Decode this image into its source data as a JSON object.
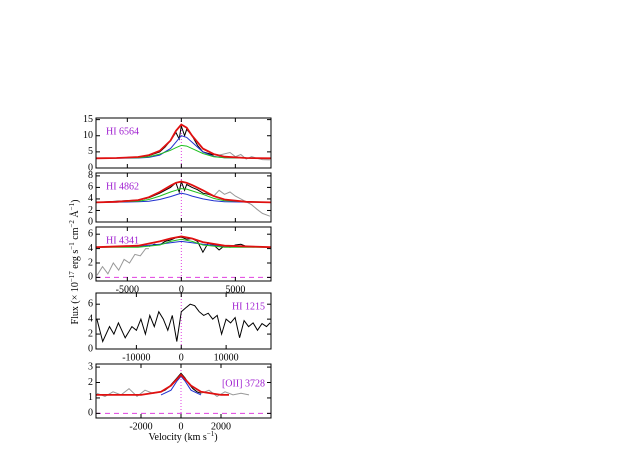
{
  "chart_data": [
    {
      "type": "line",
      "label": "HI 6564",
      "xlim": [
        -7900,
        8300
      ],
      "ylim": [
        0,
        15.5
      ],
      "xticks": [
        -5000,
        0,
        5000
      ],
      "yticks": [
        0,
        5,
        10,
        15
      ],
      "xtick_labels": false,
      "hline": {
        "value": 0,
        "color": "#e040e0"
      },
      "vline": {
        "value": 0,
        "color": "#e040e0"
      },
      "series": [
        {
          "color": "#999999",
          "x": [
            2500,
            3500,
            4500,
            5000,
            5500,
            6000,
            6500,
            7000,
            7500,
            8200
          ],
          "values": [
            4.5,
            4,
            4.8,
            3.5,
            4.2,
            2.8,
            3.5,
            3,
            2.6,
            2.5
          ]
        },
        {
          "color": "#000000",
          "x": [
            -7800,
            -6000,
            -4000,
            -3000,
            -2000,
            -1500,
            -1000,
            -500,
            -200,
            0,
            300,
            500,
            1000,
            1500,
            2000,
            2500,
            3000
          ],
          "values": [
            3,
            3.1,
            3.3,
            3.8,
            5,
            6.5,
            8.5,
            11,
            9,
            13,
            10,
            12,
            10,
            7,
            5,
            4.5,
            4
          ]
        },
        {
          "color": "#2030d0",
          "x": [
            -7900,
            -4000,
            -3000,
            -2000,
            -1000,
            -500,
            0,
            500,
            1000,
            2000,
            3000,
            4000,
            8300
          ],
          "values": [
            3,
            3.1,
            3.3,
            4,
            6,
            8,
            10,
            9.5,
            8,
            5,
            3.6,
            3.2,
            3
          ]
        },
        {
          "color": "#20c020",
          "x": [
            -7900,
            -4000,
            -3000,
            -2000,
            -1000,
            -500,
            0,
            500,
            1000,
            2000,
            3000,
            4000,
            8300
          ],
          "values": [
            3,
            3.2,
            3.5,
            4.3,
            5.5,
            6.3,
            7,
            6.8,
            6,
            4.5,
            3.5,
            3.2,
            3
          ]
        },
        {
          "color": "#e01010",
          "x": [
            -7900,
            -6000,
            -4000,
            -3000,
            -2000,
            -1000,
            -500,
            0,
            500,
            1000,
            2000,
            3000,
            4000,
            6000,
            8300
          ],
          "values": [
            3,
            3.1,
            3.4,
            4,
            5.3,
            8.5,
            11.5,
            13.5,
            12.5,
            10,
            6,
            4.3,
            3.5,
            3.1,
            3
          ]
        }
      ]
    },
    {
      "type": "line",
      "label": "HI 4862",
      "xlim": [
        -7900,
        8300
      ],
      "ylim": [
        0,
        8.5
      ],
      "xticks": [
        -5000,
        0,
        5000
      ],
      "yticks": [
        0,
        2,
        4,
        6,
        8
      ],
      "xtick_labels": false,
      "hline": {
        "value": 0,
        "color": "#e040e0"
      },
      "vline": {
        "value": 0,
        "color": "#e040e0"
      },
      "series": [
        {
          "color": "#999999",
          "x": [
            3000,
            3500,
            4000,
            4500,
            5000,
            5500,
            6000,
            6500,
            7000,
            7500,
            8200
          ],
          "values": [
            4.5,
            5.5,
            4.8,
            5.2,
            4.5,
            4,
            3.5,
            3,
            2.2,
            1.5,
            1
          ]
        },
        {
          "color": "#000000",
          "x": [
            -7800,
            -6000,
            -4000,
            -3000,
            -2000,
            -1500,
            -1000,
            -500,
            -200,
            0,
            300,
            500,
            1000,
            1500,
            2000,
            2500,
            3000
          ],
          "values": [
            3.4,
            3.6,
            3.8,
            4.2,
            5,
            5.5,
            6,
            6.8,
            5.2,
            7,
            5.5,
            6.5,
            6,
            5.6,
            5,
            4.8,
            4.5
          ]
        },
        {
          "color": "#2030d0",
          "x": [
            -7900,
            -4000,
            -3000,
            -2000,
            -1000,
            -500,
            0,
            500,
            1000,
            2000,
            3000,
            4000,
            8300
          ],
          "values": [
            3.4,
            3.5,
            3.6,
            3.9,
            4.4,
            4.7,
            5,
            4.8,
            4.5,
            4,
            3.7,
            3.5,
            3.4
          ]
        },
        {
          "color": "#20c020",
          "x": [
            -7900,
            -4000,
            -3000,
            -2000,
            -1000,
            -500,
            0,
            500,
            1000,
            2000,
            3000,
            4000,
            8300
          ],
          "values": [
            3.4,
            3.6,
            3.9,
            4.5,
            5.2,
            5.5,
            5.8,
            5.7,
            5.4,
            4.8,
            4.1,
            3.7,
            3.4
          ]
        },
        {
          "color": "#e01010",
          "x": [
            -7900,
            -6000,
            -4000,
            -3000,
            -2000,
            -1000,
            -500,
            0,
            500,
            1000,
            2000,
            3000,
            4000,
            6000,
            8300
          ],
          "values": [
            3.4,
            3.5,
            3.8,
            4.3,
            5.2,
            6.3,
            6.8,
            7,
            6.8,
            6.4,
            5.5,
            4.5,
            3.9,
            3.5,
            3.4
          ]
        }
      ]
    },
    {
      "type": "line",
      "label": "HI 4341",
      "xlim": [
        -7900,
        8300
      ],
      "ylim": [
        -0.5,
        7
      ],
      "xticks": [
        -5000,
        0,
        5000
      ],
      "yticks": [
        0,
        2,
        4,
        6
      ],
      "xtick_labels": true,
      "hline": {
        "value": 0,
        "color": "#e040e0"
      },
      "vline": {
        "value": 0,
        "color": "#e040e0"
      },
      "series": [
        {
          "color": "#999999",
          "x": [
            -7800,
            -7300,
            -6800,
            -6300,
            -5800,
            -5300,
            -4800,
            -4300,
            -3800,
            -3300,
            -3000
          ],
          "values": [
            0.3,
            1.5,
            0.5,
            2,
            1,
            2.5,
            2,
            3.2,
            3,
            4,
            4
          ]
        },
        {
          "color": "#000000",
          "x": [
            -3000,
            -2500,
            -2000,
            -1500,
            -1000,
            -500,
            0,
            500,
            1000,
            1500,
            2000,
            2500,
            3000,
            3500,
            4000,
            4500,
            5000,
            5500,
            6000
          ],
          "values": [
            4.3,
            4.6,
            4.5,
            5,
            5.2,
            5.5,
            5.6,
            5.3,
            5.4,
            5,
            3.5,
            4.8,
            4.5,
            3.8,
            4.4,
            4.2,
            4.5,
            4.6,
            4.3
          ]
        },
        {
          "color": "#2030d0",
          "x": [
            -7900,
            -4000,
            -2000,
            -1000,
            0,
            1000,
            2000,
            4000,
            8300
          ],
          "values": [
            4.2,
            4.3,
            4.6,
            4.8,
            5,
            4.8,
            4.6,
            4.3,
            4.2
          ]
        },
        {
          "color": "#20c020",
          "x": [
            -7900,
            -4000,
            -2000,
            -1000,
            0,
            1000,
            2000,
            4000,
            8300
          ],
          "values": [
            4.2,
            4.2,
            4.5,
            5,
            5.3,
            5,
            4.5,
            4.2,
            4.2
          ]
        },
        {
          "color": "#e01010",
          "x": [
            -7900,
            -4000,
            -2000,
            -1000,
            0,
            1000,
            2000,
            4000,
            8300
          ],
          "values": [
            4.2,
            4.4,
            5,
            5.4,
            5.7,
            5.4,
            4.9,
            4.4,
            4.2
          ]
        }
      ]
    },
    {
      "type": "line",
      "label": "HI 1215",
      "xlim": [
        -19000,
        20000
      ],
      "ylim": [
        0,
        7.5
      ],
      "xticks": [
        -10000,
        0,
        10000
      ],
      "yticks": [
        0,
        2,
        4,
        6
      ],
      "xtick_labels": true,
      "hline": {
        "value": 0,
        "color": "#e040e0"
      },
      "vline": {
        "value": 0,
        "color": "#e040e0"
      },
      "series": [
        {
          "color": "#000000",
          "x": [
            -18800,
            -17500,
            -16000,
            -15000,
            -14000,
            -12500,
            -11000,
            -10000,
            -9000,
            -8000,
            -7000,
            -6000,
            -5000,
            -4000,
            -3000,
            -2000,
            -1000,
            0,
            1000,
            2000,
            3000,
            4000,
            5000,
            6000,
            7000,
            8000,
            9000,
            10000,
            11000,
            12000,
            13000,
            14000,
            15000,
            16000,
            17000,
            18000,
            19000,
            19800
          ],
          "values": [
            4,
            1,
            3,
            2,
            3.5,
            1.5,
            3,
            2.5,
            4,
            2,
            4.5,
            3,
            5,
            4,
            2.5,
            4.5,
            1,
            5,
            5.5,
            6,
            5.8,
            5,
            4.5,
            4.8,
            4,
            4.5,
            2,
            4,
            3.5,
            4.2,
            1.5,
            3.8,
            3,
            3.5,
            2.5,
            3.4,
            3,
            3.5
          ]
        }
      ]
    },
    {
      "type": "line",
      "label": "[OII] 3728",
      "xlim": [
        -4250,
        4500
      ],
      "ylim": [
        -0.3,
        3.2
      ],
      "xticks": [
        -2000,
        0,
        2000
      ],
      "yticks": [
        0,
        1,
        2,
        3
      ],
      "xtick_labels": true,
      "hline": {
        "value": 0,
        "color": "#e040e0"
      },
      "vline": {
        "value": 0,
        "color": "#e040e0"
      },
      "series": [
        {
          "color": "#999999",
          "x": [
            -4200,
            -3800,
            -3400,
            -3000,
            -2600,
            -2200,
            -1800,
            -1400,
            -1000
          ],
          "values": [
            1.3,
            1.1,
            1.4,
            1.2,
            1.6,
            1.1,
            1.5,
            1.3,
            1.4
          ]
        },
        {
          "color": "#999999",
          "x": [
            1000,
            1400,
            1800,
            2200,
            2600,
            3000,
            3400
          ],
          "values": [
            1.3,
            1.5,
            1.1,
            1.4,
            1.2,
            1.3,
            1.2
          ]
        },
        {
          "color": "#000000",
          "x": [
            -1000,
            -800,
            -600,
            -400,
            -200,
            0,
            200,
            400,
            600,
            800,
            1000
          ],
          "values": [
            1.4,
            1.5,
            1.7,
            2,
            2.3,
            2.6,
            2.3,
            1.9,
            1.6,
            1.4,
            1.3
          ]
        },
        {
          "color": "#2030d0",
          "x": [
            -1000,
            -500,
            -200,
            0,
            200,
            500,
            1000
          ],
          "values": [
            1.2,
            1.5,
            2.1,
            2.4,
            2.1,
            1.5,
            1.2
          ]
        },
        {
          "color": "#e01010",
          "x": [
            -4250,
            -2000,
            -1000,
            -500,
            0,
            500,
            1000,
            2000,
            2400
          ],
          "values": [
            1.2,
            1.2,
            1.4,
            1.8,
            2.5,
            1.8,
            1.4,
            1.2,
            1.2
          ]
        }
      ]
    }
  ],
  "ylabel": [
    "Flux (× 10",
    "−17",
    " erg s",
    "−1",
    " cm",
    "−2",
    " Å",
    "−1",
    ")"
  ],
  "xlabel": [
    "Velocity (km s",
    "−1",
    ")"
  ]
}
